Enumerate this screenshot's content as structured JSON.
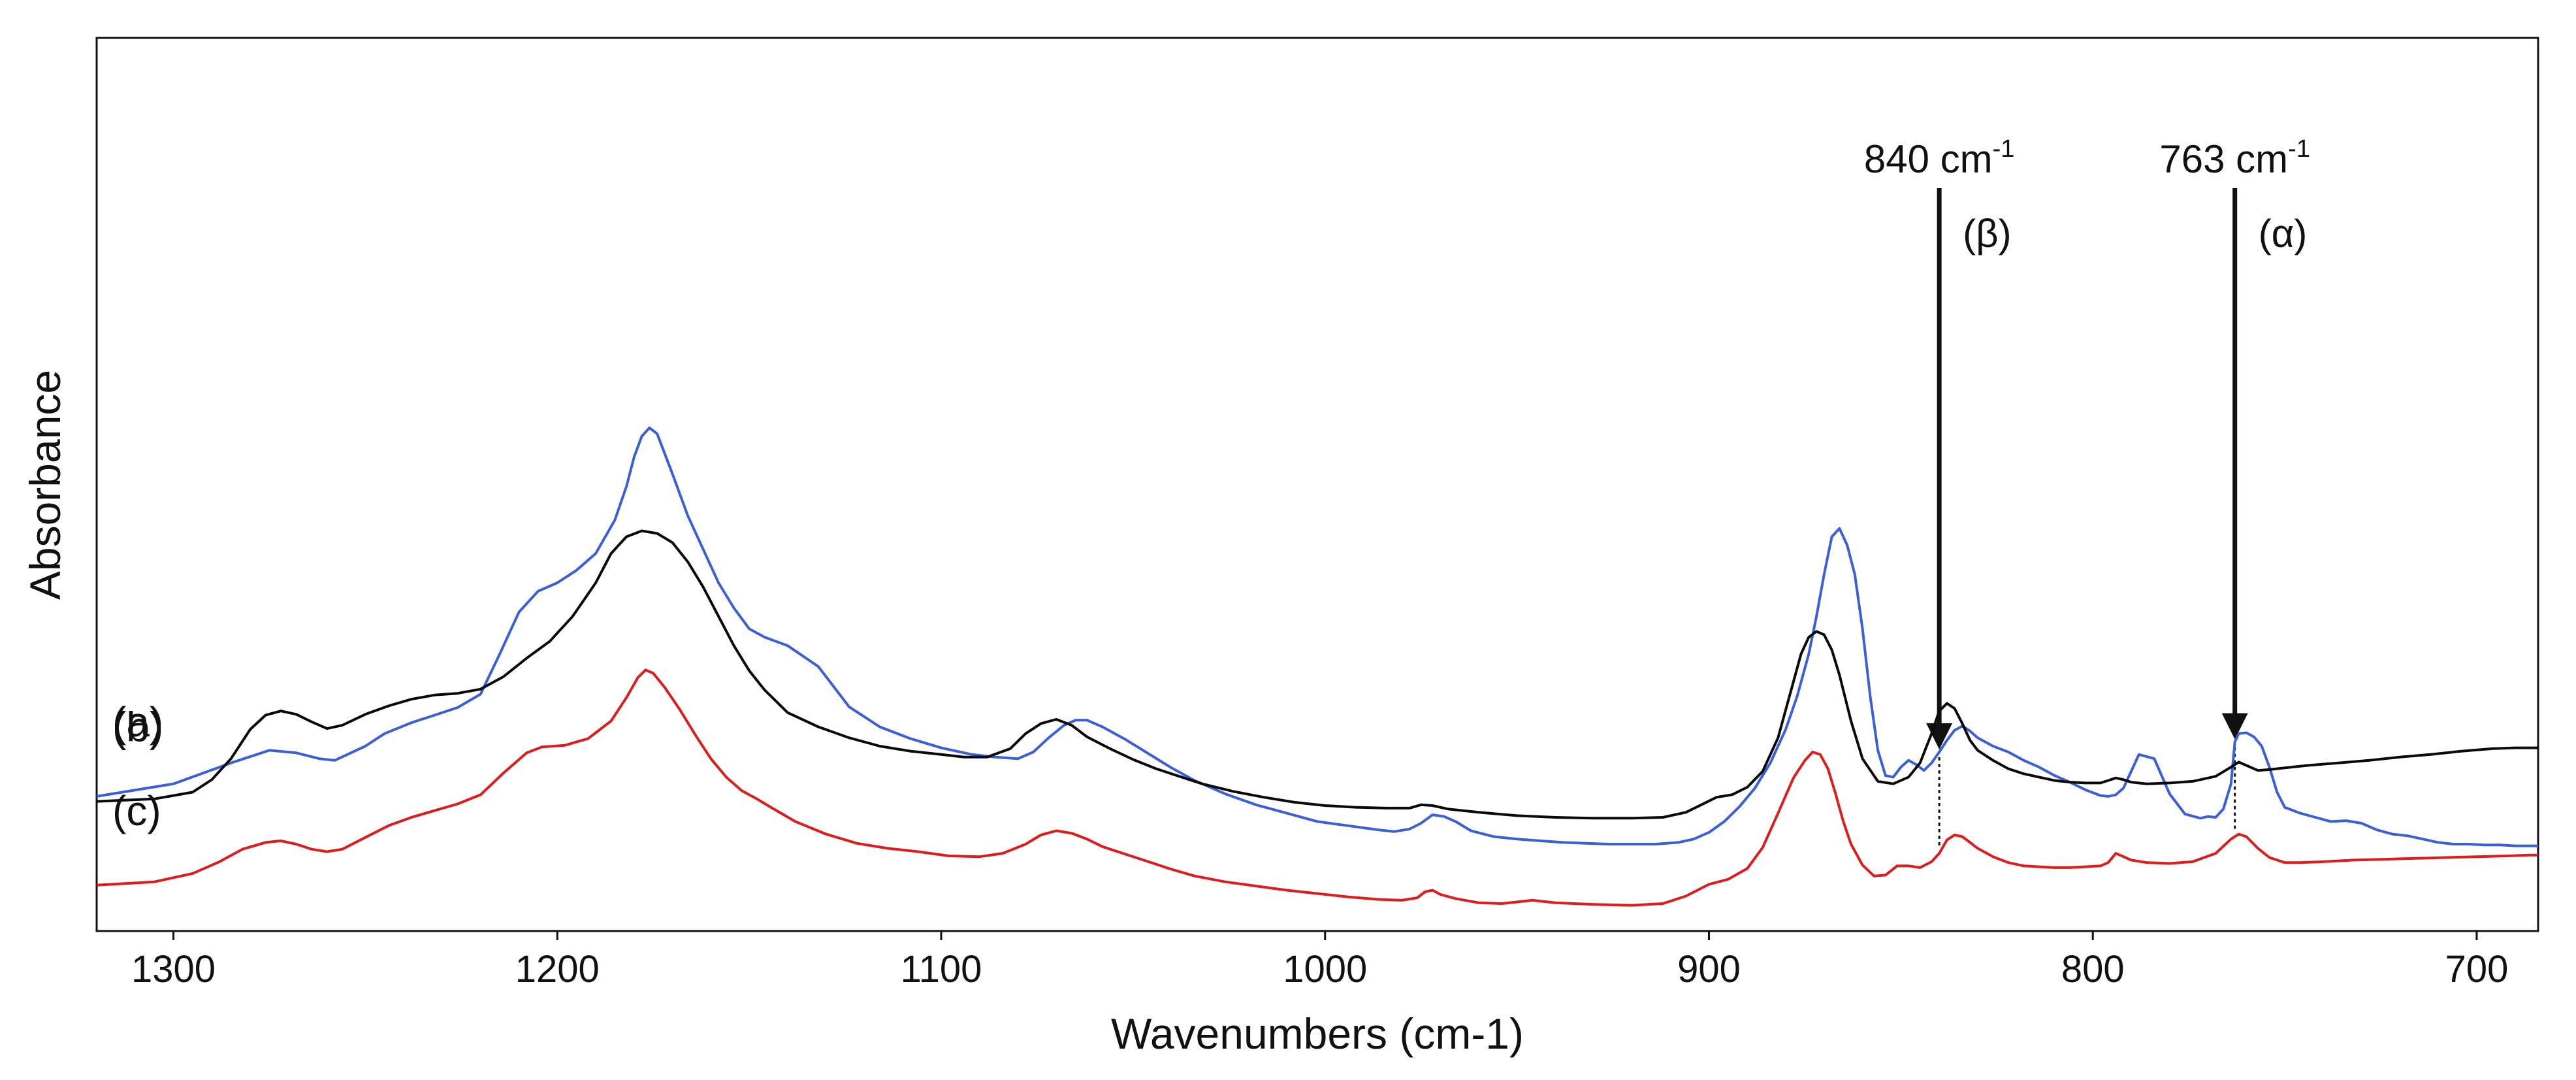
{
  "chart_data": {
    "type": "line",
    "title": "",
    "xlabel": "Wavenumbers (cm-1)",
    "ylabel": "Absorbance",
    "xlim": [
      1320,
      684
    ],
    "x_reversed": true,
    "y_ticks_shown": false,
    "ylim": [
      0,
      100
    ],
    "grid": false,
    "x_ticks": [
      1300,
      1200,
      1100,
      1000,
      900,
      800,
      700
    ],
    "x_tick_labels": [
      "1300",
      "1200",
      "1100",
      "1000",
      "900",
      "800",
      "700"
    ],
    "series": [
      {
        "name": "(a)",
        "color": "#3a5fd9",
        "x": [
          1320,
          1300,
          1285,
          1275,
          1268,
          1262,
          1258,
          1250,
          1245,
          1238,
          1232,
          1226,
          1220,
          1215,
          1210,
          1205,
          1200,
          1195,
          1190,
          1185,
          1182,
          1180,
          1178,
          1176,
          1174,
          1170,
          1166,
          1162,
          1158,
          1154,
          1150,
          1146,
          1140,
          1132,
          1124,
          1116,
          1108,
          1100,
          1092,
          1086,
          1080,
          1076,
          1072,
          1068,
          1065,
          1062,
          1058,
          1052,
          1046,
          1040,
          1034,
          1026,
          1018,
          1010,
          1002,
          994,
          986,
          982,
          978,
          975,
          972,
          969,
          966,
          962,
          956,
          950,
          944,
          938,
          932,
          926,
          920,
          914,
          908,
          904,
          900,
          896,
          892,
          888,
          884,
          880,
          877,
          874,
          872,
          870,
          868,
          866,
          864,
          862,
          860,
          858,
          856,
          854,
          852,
          850,
          848,
          846,
          844,
          842,
          840,
          838,
          836,
          834,
          832,
          830,
          826,
          822,
          818,
          814,
          810,
          806,
          802,
          798,
          796,
          794,
          792,
          790,
          788,
          784,
          780,
          776,
          772,
          770,
          768,
          766,
          764,
          763,
          762,
          760,
          758,
          756,
          754,
          752,
          750,
          746,
          742,
          738,
          734,
          730,
          726,
          722,
          718,
          714,
          710,
          706,
          702,
          698,
          694,
          690,
          686,
          684
        ],
        "y": [
          13.5,
          15.0,
          17.5,
          19.0,
          18.7,
          18.0,
          17.8,
          19.5,
          21.0,
          22.3,
          23.2,
          24.1,
          25.7,
          30.5,
          35.5,
          38.0,
          39.0,
          40.5,
          42.5,
          46.5,
          50.5,
          54.0,
          56.5,
          57.5,
          56.8,
          52.0,
          47.0,
          43.0,
          39.0,
          36.0,
          33.5,
          32.5,
          31.5,
          29.0,
          24.2,
          21.8,
          20.4,
          19.3,
          18.5,
          18.2,
          18.0,
          18.8,
          20.5,
          22.0,
          22.6,
          22.6,
          21.8,
          20.3,
          18.6,
          16.9,
          15.4,
          13.8,
          12.5,
          11.5,
          10.5,
          10.0,
          9.5,
          9.3,
          9.6,
          10.3,
          11.3,
          11.1,
          10.5,
          9.4,
          8.7,
          8.4,
          8.2,
          8.0,
          7.9,
          7.8,
          7.8,
          7.8,
          8.0,
          8.4,
          9.2,
          10.5,
          12.3,
          14.5,
          17.5,
          21.5,
          25.5,
          30.5,
          35.0,
          40.0,
          44.5,
          45.5,
          43.5,
          40.0,
          33.5,
          25.5,
          19.0,
          16.0,
          15.8,
          17.0,
          17.8,
          17.3,
          16.6,
          17.5,
          18.8,
          20.2,
          21.4,
          21.9,
          21.3,
          20.5,
          19.5,
          18.8,
          17.8,
          17.0,
          16.0,
          15.2,
          14.3,
          13.6,
          13.5,
          13.7,
          14.5,
          16.5,
          18.5,
          18.0,
          13.8,
          11.4,
          10.9,
          11.1,
          11.0,
          12.0,
          15.0,
          20.0,
          21.0,
          21.1,
          20.6,
          19.5,
          17.0,
          14.0,
          12.2,
          11.5,
          11.0,
          10.5,
          10.6,
          10.3,
          9.5,
          9.0,
          8.8,
          8.4,
          8.0,
          7.8,
          7.8,
          7.7,
          7.7,
          7.6,
          7.6,
          7.6
        ]
      },
      {
        "name": "(b)",
        "color": "#0a0a0a",
        "x": [
          1320,
          1305,
          1295,
          1290,
          1285,
          1280,
          1276,
          1272,
          1268,
          1264,
          1260,
          1256,
          1250,
          1244,
          1238,
          1232,
          1226,
          1220,
          1214,
          1208,
          1202,
          1196,
          1190,
          1186,
          1182,
          1178,
          1174,
          1170,
          1166,
          1162,
          1158,
          1154,
          1150,
          1146,
          1140,
          1132,
          1124,
          1116,
          1108,
          1100,
          1094,
          1088,
          1082,
          1078,
          1074,
          1070,
          1066,
          1062,
          1056,
          1050,
          1044,
          1038,
          1032,
          1024,
          1016,
          1008,
          1000,
          992,
          984,
          978,
          975,
          972,
          968,
          960,
          950,
          940,
          930,
          920,
          912,
          906,
          902,
          898,
          894,
          890,
          886,
          882,
          879,
          876,
          874,
          872,
          870,
          868,
          866,
          863,
          860,
          856,
          852,
          848,
          845,
          842,
          840,
          838,
          836,
          834,
          832,
          830,
          826,
          822,
          818,
          814,
          810,
          806,
          802,
          798,
          796,
          794,
          792,
          790,
          786,
          780,
          774,
          768,
          764,
          762,
          760,
          757,
          754,
          750,
          744,
          736,
          728,
          720,
          712,
          704,
          696,
          690,
          686,
          684
        ],
        "y": [
          12.9,
          13.2,
          14.0,
          15.5,
          18.0,
          21.5,
          23.2,
          23.7,
          23.3,
          22.4,
          21.6,
          22.0,
          23.3,
          24.3,
          25.1,
          25.6,
          25.8,
          26.3,
          27.8,
          30.0,
          32.0,
          35.0,
          39.0,
          42.5,
          44.5,
          45.2,
          44.9,
          43.8,
          41.5,
          38.5,
          35.0,
          31.5,
          28.5,
          26.2,
          23.5,
          21.8,
          20.5,
          19.5,
          18.9,
          18.5,
          18.2,
          18.2,
          19.2,
          21.0,
          22.2,
          22.7,
          22.0,
          20.6,
          19.2,
          17.9,
          16.8,
          15.9,
          15.0,
          14.1,
          13.4,
          12.8,
          12.4,
          12.2,
          12.1,
          12.1,
          12.5,
          12.4,
          12.0,
          11.6,
          11.2,
          11.0,
          10.9,
          10.9,
          11.0,
          11.6,
          12.5,
          13.4,
          13.7,
          14.6,
          16.5,
          20.5,
          25.5,
          30.5,
          32.5,
          33.2,
          32.8,
          31.0,
          28.0,
          22.5,
          18.0,
          15.3,
          15.0,
          15.8,
          17.5,
          21.0,
          23.7,
          24.6,
          24.0,
          22.2,
          20.2,
          19.0,
          17.8,
          16.8,
          16.2,
          15.8,
          15.4,
          15.2,
          15.1,
          15.1,
          15.4,
          15.7,
          15.5,
          15.2,
          15.0,
          15.1,
          15.3,
          15.9,
          17.0,
          17.6,
          17.2,
          16.6,
          16.7,
          16.9,
          17.2,
          17.5,
          17.8,
          18.2,
          18.5,
          18.9,
          19.2,
          19.3,
          19.3,
          19.3
        ]
      },
      {
        "name": "(c)",
        "color": "#e01b1b",
        "x": [
          1320,
          1305,
          1295,
          1288,
          1282,
          1276,
          1272,
          1268,
          1264,
          1260,
          1256,
          1250,
          1244,
          1238,
          1232,
          1226,
          1220,
          1214,
          1208,
          1204,
          1198,
          1192,
          1186,
          1182,
          1179,
          1177,
          1175,
          1172,
          1168,
          1164,
          1160,
          1156,
          1152,
          1148,
          1144,
          1138,
          1130,
          1122,
          1114,
          1106,
          1098,
          1090,
          1084,
          1078,
          1074,
          1070,
          1066,
          1062,
          1058,
          1052,
          1046,
          1040,
          1034,
          1026,
          1018,
          1010,
          1002,
          994,
          986,
          980,
          976,
          974,
          972,
          970,
          966,
          960,
          954,
          950,
          946,
          940,
          930,
          920,
          912,
          906,
          900,
          895,
          890,
          886,
          882,
          878,
          875,
          873,
          871,
          869,
          867,
          865,
          863,
          860,
          857,
          854,
          851,
          848,
          845,
          842,
          840,
          838,
          836,
          834,
          832,
          830,
          826,
          822,
          818,
          814,
          810,
          806,
          802,
          798,
          796,
          794,
          792,
          790,
          786,
          780,
          774,
          768,
          764,
          762,
          760,
          757,
          754,
          750,
          746,
          740,
          732,
          724,
          716,
          708,
          700,
          692,
          686,
          684
        ],
        "y": [
          2.9,
          3.3,
          4.3,
          5.7,
          7.2,
          8.0,
          8.2,
          7.8,
          7.2,
          6.9,
          7.2,
          8.6,
          10.0,
          11.0,
          11.8,
          12.6,
          13.7,
          16.3,
          18.7,
          19.4,
          19.6,
          20.4,
          22.5,
          25.3,
          27.7,
          28.6,
          28.2,
          26.5,
          23.8,
          20.8,
          18.0,
          15.8,
          14.2,
          13.2,
          12.1,
          10.5,
          9.0,
          7.9,
          7.3,
          6.9,
          6.4,
          6.3,
          6.7,
          7.8,
          8.9,
          9.4,
          9.1,
          8.4,
          7.5,
          6.6,
          5.7,
          4.8,
          4.0,
          3.3,
          2.8,
          2.3,
          1.9,
          1.5,
          1.2,
          1.1,
          1.4,
          2.1,
          2.3,
          1.8,
          1.3,
          0.8,
          0.7,
          0.9,
          1.1,
          0.8,
          0.6,
          0.5,
          0.7,
          1.6,
          3.0,
          3.6,
          4.9,
          7.4,
          11.5,
          15.7,
          17.8,
          18.8,
          18.5,
          16.8,
          13.8,
          10.5,
          7.8,
          5.3,
          4.0,
          4.1,
          5.2,
          5.2,
          5.0,
          5.7,
          6.7,
          8.3,
          8.9,
          8.7,
          8.0,
          7.3,
          6.3,
          5.6,
          5.2,
          5.1,
          5.0,
          5.0,
          5.1,
          5.2,
          5.6,
          6.7,
          6.3,
          5.9,
          5.6,
          5.5,
          5.7,
          6.7,
          8.4,
          9.0,
          8.7,
          7.3,
          6.2,
          5.6,
          5.6,
          5.7,
          5.9,
          6.0,
          6.1,
          6.2,
          6.3,
          6.4,
          6.5,
          6.5
        ]
      }
    ],
    "annotations": [
      {
        "label_main": "840 cm",
        "label_sup": "-1",
        "sub": "(β)",
        "x": 840
      },
      {
        "label_main": "763 cm",
        "label_sup": "-1",
        "sub": "(α)",
        "x": 763
      }
    ]
  }
}
